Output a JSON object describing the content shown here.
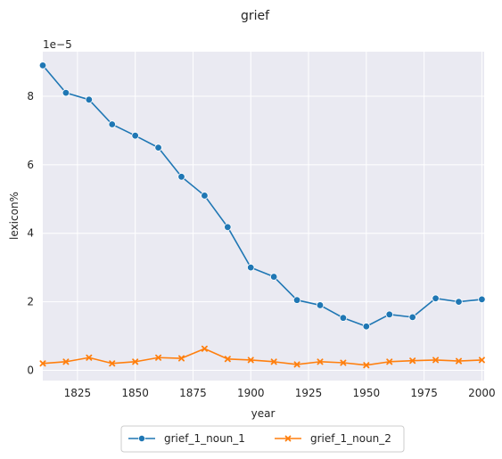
{
  "chart_data": {
    "type": "line",
    "title": "grief",
    "xlabel": "year",
    "ylabel": "lexicon%",
    "y_offset_label": "1e−5",
    "xlim": [
      1810,
      2001
    ],
    "ylim": [
      -0.3,
      9.3
    ],
    "x_ticks": [
      1825,
      1850,
      1875,
      1900,
      1925,
      1950,
      1975,
      2000
    ],
    "y_ticks": [
      0,
      2,
      4,
      6,
      8
    ],
    "grid": true,
    "legend_placement": "bottom-center",
    "x": [
      1810,
      1820,
      1830,
      1840,
      1850,
      1860,
      1870,
      1880,
      1890,
      1900,
      1910,
      1920,
      1930,
      1940,
      1950,
      1960,
      1970,
      1980,
      1990,
      2000
    ],
    "series": [
      {
        "name": "grief_1_noun_1",
        "color": "#1f77b4",
        "marker": "circle",
        "values": [
          8.9,
          8.1,
          7.9,
          7.18,
          6.85,
          6.5,
          5.65,
          5.1,
          4.18,
          3.0,
          2.73,
          2.05,
          1.9,
          1.53,
          1.28,
          1.63,
          1.55,
          2.1,
          2.0,
          2.07
        ]
      },
      {
        "name": "grief_1_noun_2",
        "color": "#ff7f0e",
        "marker": "x",
        "values": [
          0.2,
          0.25,
          0.37,
          0.2,
          0.25,
          0.37,
          0.35,
          0.63,
          0.33,
          0.3,
          0.25,
          0.17,
          0.25,
          0.22,
          0.15,
          0.25,
          0.28,
          0.3,
          0.27,
          0.3
        ]
      }
    ]
  }
}
